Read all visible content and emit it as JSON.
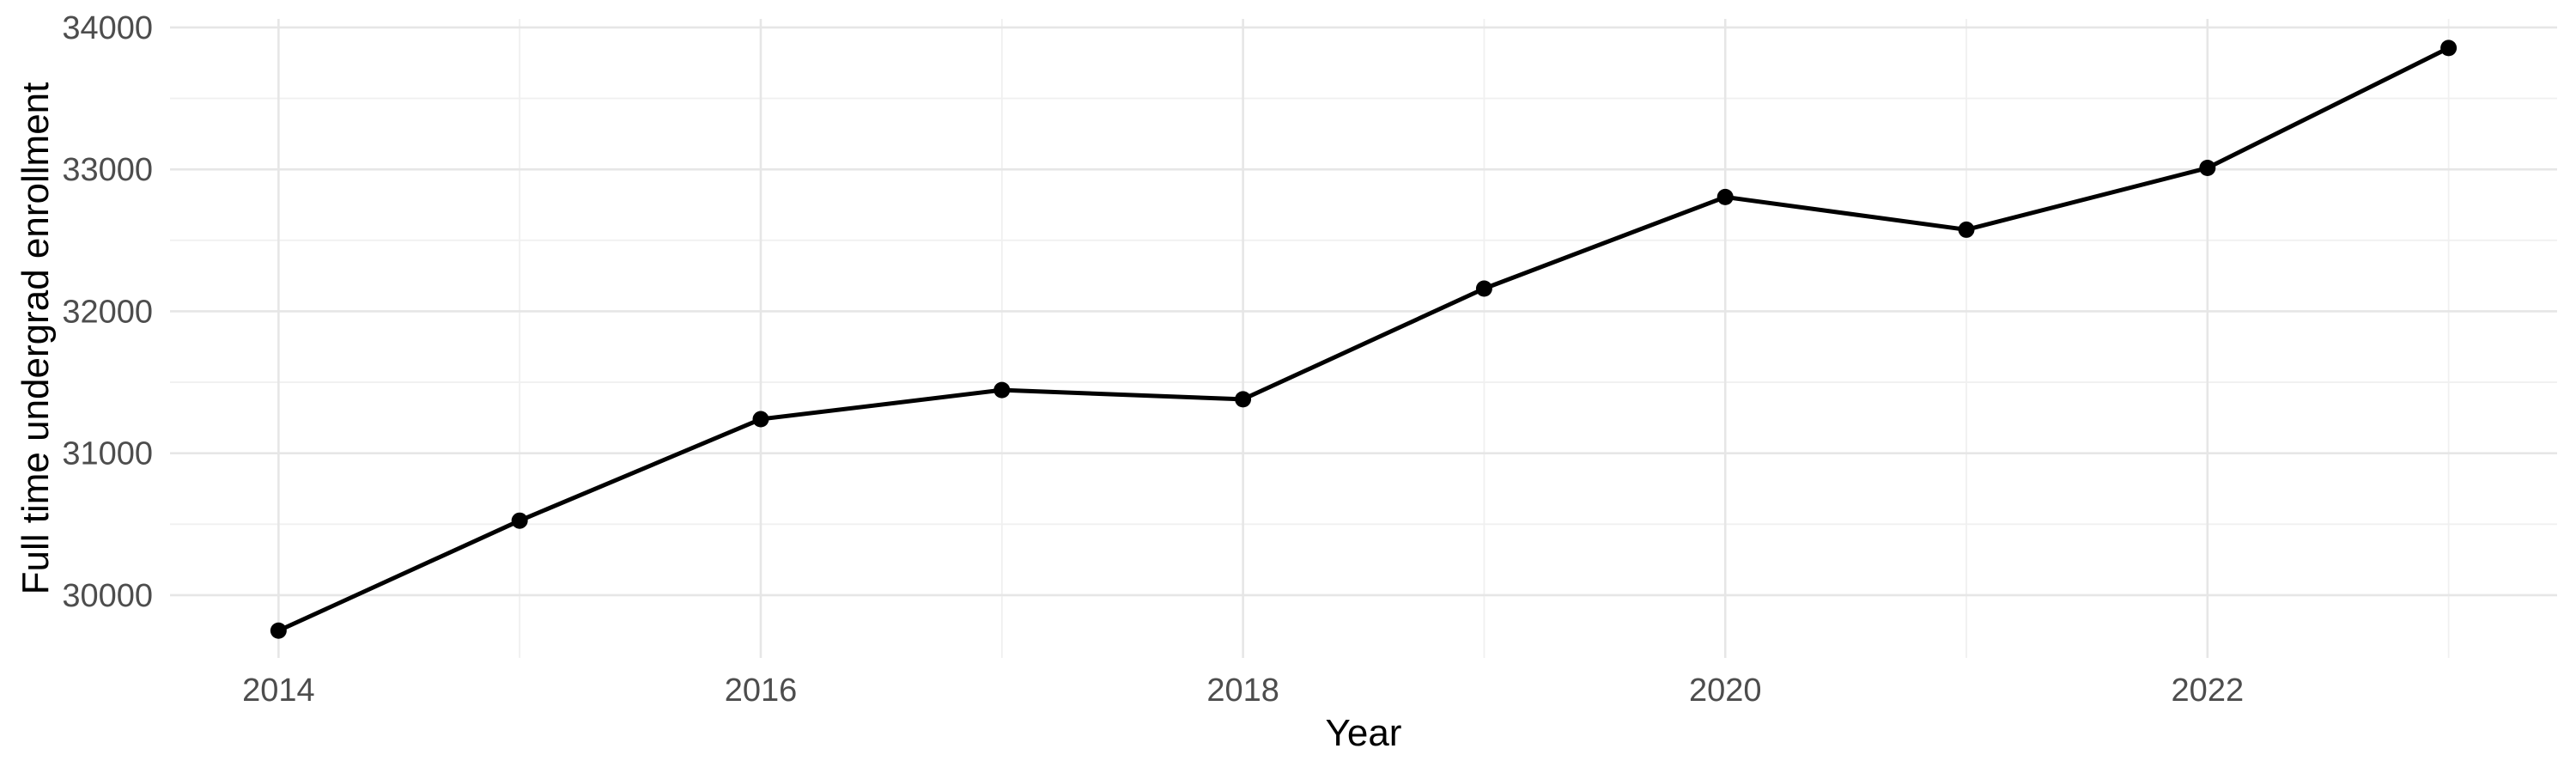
{
  "chart_data": {
    "type": "line",
    "title": "",
    "xlabel": "Year",
    "ylabel": "Full time undergrad enrollment",
    "x": [
      2014,
      2015,
      2016,
      2017,
      2018,
      2019,
      2020,
      2021,
      2022,
      2023
    ],
    "series": [
      {
        "name": "Full time undergrad enrollment",
        "values": [
          29750,
          30525,
          31240,
          31445,
          31380,
          32160,
          32805,
          32575,
          33010,
          33855
        ]
      }
    ],
    "x_major_ticks": [
      2014,
      2016,
      2018,
      2020,
      2022
    ],
    "x_minor_ticks": [
      2015,
      2017,
      2019,
      2021,
      2023
    ],
    "y_major_ticks": [
      30000,
      31000,
      32000,
      33000,
      34000
    ],
    "y_minor_ticks": [
      30500,
      31500,
      32500,
      33500
    ],
    "xlim": [
      2013.55,
      2023.45
    ],
    "ylim": [
      29558,
      34060
    ],
    "grid": "major-and-minor",
    "legend": "none",
    "colors": {
      "line": "#000000",
      "point": "#000000",
      "grid_major": "#E6E6E6",
      "grid_minor": "#F0F0F0",
      "tick_label": "#4D4D4D",
      "axis_title": "#000000",
      "background": "#FFFFFF"
    }
  }
}
